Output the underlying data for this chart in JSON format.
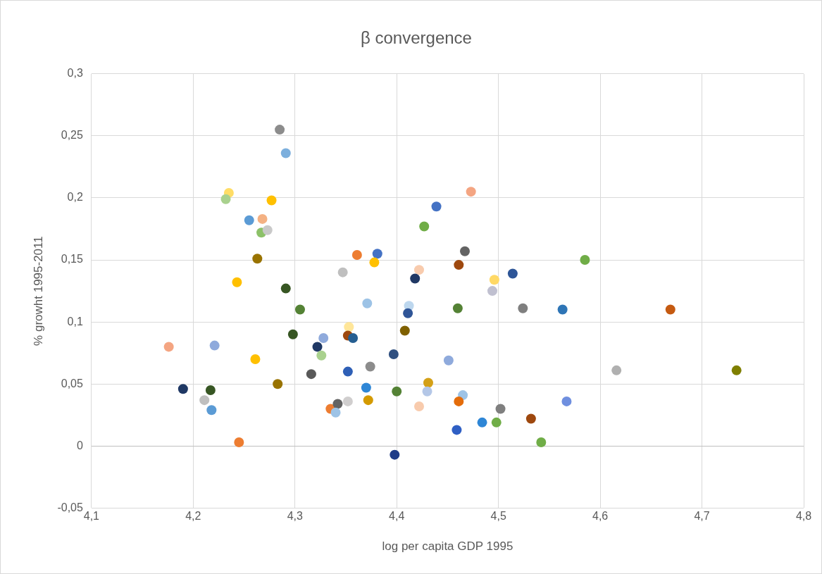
{
  "chart_data": {
    "type": "scatter",
    "title": "β convergence",
    "xlabel": "log per capita GDP 1995",
    "ylabel": "% growht 1995-2011",
    "x": [
      4.285,
      4.291,
      4.235,
      4.232,
      4.277,
      4.255,
      4.268,
      4.267,
      4.273,
      4.263,
      4.243,
      4.291,
      4.305,
      4.298,
      4.328,
      4.322,
      4.326,
      4.316,
      4.176,
      4.221,
      4.261,
      4.283,
      4.19,
      4.217,
      4.211,
      4.218,
      4.245,
      4.473,
      4.439,
      4.427,
      4.361,
      4.381,
      4.378,
      4.347,
      4.467,
      4.461,
      4.422,
      4.418,
      4.514,
      4.496,
      4.494,
      4.585,
      4.371,
      4.412,
      4.411,
      4.46,
      4.524,
      4.563,
      4.353,
      4.352,
      4.357,
      4.408,
      4.397,
      4.451,
      4.352,
      4.374,
      4.431,
      4.43,
      4.4,
      4.37,
      4.372,
      4.335,
      4.342,
      4.352,
      4.34,
      4.422,
      4.465,
      4.461,
      4.502,
      4.532,
      4.484,
      4.498,
      4.459,
      4.542,
      4.398,
      4.669,
      4.616,
      4.734,
      4.567
    ],
    "values": [
      0.255,
      0.236,
      0.204,
      0.199,
      0.198,
      0.182,
      0.183,
      0.172,
      0.174,
      0.151,
      0.132,
      0.127,
      0.11,
      0.09,
      0.087,
      0.08,
      0.073,
      0.058,
      0.08,
      0.081,
      0.07,
      0.05,
      0.046,
      0.045,
      0.037,
      0.029,
      0.003,
      0.205,
      0.193,
      0.177,
      0.154,
      0.155,
      0.148,
      0.14,
      0.157,
      0.146,
      0.142,
      0.135,
      0.139,
      0.134,
      0.125,
      0.15,
      0.115,
      0.113,
      0.107,
      0.111,
      0.111,
      0.11,
      0.096,
      0.089,
      0.087,
      0.093,
      0.074,
      0.069,
      0.06,
      0.064,
      0.051,
      0.044,
      0.044,
      0.047,
      0.037,
      0.03,
      0.034,
      0.036,
      0.027,
      0.032,
      0.041,
      0.036,
      0.03,
      0.022,
      0.019,
      0.019,
      0.013,
      0.003,
      -0.007,
      0.11,
      0.061,
      0.061,
      0.036
    ],
    "colors": [
      "#8c8c8c",
      "#7cafdd",
      "#ffdd66",
      "#a9d18e",
      "#ffc000",
      "#5b9bd5",
      "#f4b183",
      "#8cc168",
      "#c9c9c9",
      "#997300",
      "#ffc000",
      "#375623",
      "#548235",
      "#375623",
      "#8faadc",
      "#1f3864",
      "#a9d18e",
      "#595959",
      "#f4a582",
      "#8faadc",
      "#ffc000",
      "#997300",
      "#1f3864",
      "#375623",
      "#bfbfbf",
      "#5b9bd5",
      "#ed7d31",
      "#f4a582",
      "#4472c4",
      "#70ad47",
      "#ed7d31",
      "#4472c4",
      "#ffc000",
      "#bfbfbf",
      "#636363",
      "#9e480e",
      "#f8cbad",
      "#203864",
      "#2e5597",
      "#ffd966",
      "#c0c0d0",
      "#70ad47",
      "#9dc3e6",
      "#bdd7ee",
      "#2f5597",
      "#548235",
      "#7f7f7f",
      "#2e75b6",
      "#ffe699",
      "#9e480e",
      "#255e91",
      "#7f6000",
      "#2f4f7f",
      "#8faadc",
      "#2e5fb6",
      "#8c8c8c",
      "#d4a017",
      "#b4c7e7",
      "#548235",
      "#2e86d6",
      "#d49a00",
      "#ed7d31",
      "#636363",
      "#d0cece",
      "#9dc3e6",
      "#f8cbad",
      "#9dc3e6",
      "#e46c0a",
      "#7f7f7f",
      "#9e480e",
      "#2e86d6",
      "#70ad47",
      "#2f5fc4",
      "#70ad47",
      "#1f3c88",
      "#c55a11",
      "#b0b0b0",
      "#7f7f00",
      "#6f8fdf"
    ],
    "xlim": [
      4.1,
      4.8
    ],
    "ylim": [
      -0.05,
      0.3
    ],
    "xticks": [
      {
        "value": 4.1,
        "label": "4,1"
      },
      {
        "value": 4.2,
        "label": "4,2"
      },
      {
        "value": 4.3,
        "label": "4,3"
      },
      {
        "value": 4.4,
        "label": "4,4"
      },
      {
        "value": 4.5,
        "label": "4,5"
      },
      {
        "value": 4.6,
        "label": "4,6"
      },
      {
        "value": 4.7,
        "label": "4,7"
      },
      {
        "value": 4.8,
        "label": "4,8"
      }
    ],
    "yticks": [
      {
        "value": -0.05,
        "label": "-0,05"
      },
      0,
      {
        "value": 0.05,
        "label": "0,05"
      },
      {
        "value": 0.1,
        "label": "0,1"
      },
      {
        "value": 0.15,
        "label": "0,15"
      },
      {
        "value": 0.2,
        "label": "0,2"
      },
      {
        "value": 0.25,
        "label": "0,25"
      },
      {
        "value": 0.3,
        "label": "0,3"
      }
    ],
    "grid": true,
    "legend": false,
    "marker": "circle"
  }
}
